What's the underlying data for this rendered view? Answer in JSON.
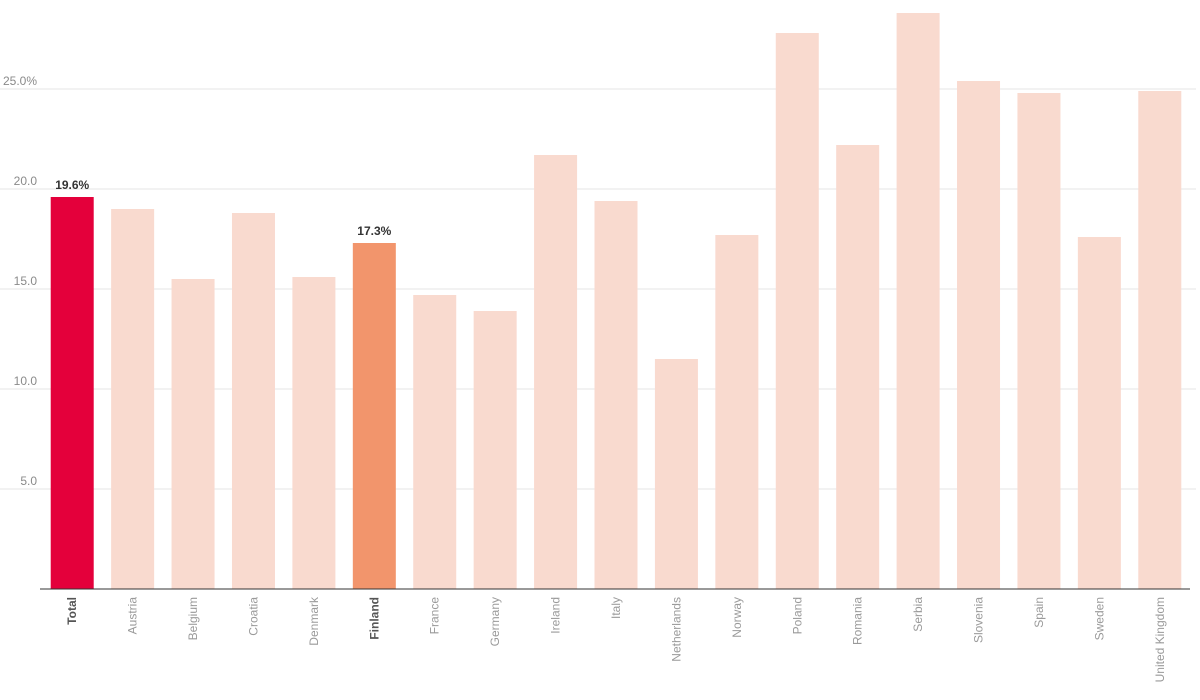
{
  "chart_data": {
    "type": "bar",
    "title": "",
    "xlabel": "",
    "ylabel": "",
    "categories": [
      "Total",
      "Austria",
      "Belgium",
      "Croatia",
      "Denmark",
      "Finland",
      "France",
      "Germany",
      "Ireland",
      "Italy",
      "Netherlands",
      "Norway",
      "Poland",
      "Romania",
      "Serbia",
      "Slovenia",
      "Spain",
      "Sweden",
      "United Kingdom"
    ],
    "values": [
      19.6,
      19.0,
      15.5,
      18.8,
      15.6,
      17.3,
      14.7,
      13.9,
      21.7,
      19.4,
      11.5,
      17.7,
      27.8,
      22.2,
      28.8,
      25.4,
      24.8,
      17.6,
      24.9
    ],
    "data_labels": [
      {
        "category": "Total",
        "text": "19.6%"
      },
      {
        "category": "Finland",
        "text": "17.3%"
      }
    ],
    "highlight": {
      "Total": "#e4003b",
      "Finland": "#f2956c"
    },
    "default_color": "#f9dacf",
    "ylim": [
      0,
      29
    ],
    "y_ticks": [
      {
        "value": 5,
        "label": "5.0"
      },
      {
        "value": 10,
        "label": "10.0"
      },
      {
        "value": 15,
        "label": "15.0"
      },
      {
        "value": 20,
        "label": "20.0"
      },
      {
        "value": 25,
        "label": "25.0%"
      }
    ],
    "grid": true,
    "legend": "none"
  }
}
